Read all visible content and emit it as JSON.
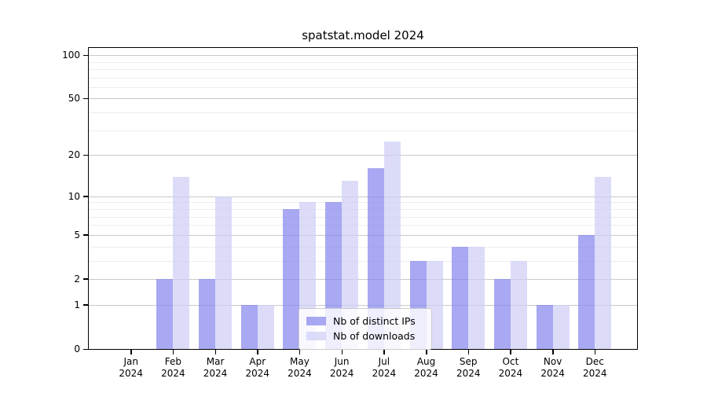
{
  "chart_data": {
    "type": "bar",
    "title": "spatstat.model 2024",
    "categories": [
      "Jan",
      "Feb",
      "Mar",
      "Apr",
      "May",
      "Jun",
      "Jul",
      "Aug",
      "Sep",
      "Oct",
      "Nov",
      "Dec"
    ],
    "x_tick_second_line": "2024",
    "series": [
      {
        "name": "Nb of distinct IPs",
        "color": "rgba(134,134,238,0.72)",
        "values": [
          0,
          2,
          2,
          1,
          8,
          9,
          16,
          3,
          4,
          2,
          1,
          5
        ]
      },
      {
        "name": "Nb of downloads",
        "color": "rgba(206,206,246,0.72)",
        "values": [
          0,
          14,
          10,
          1,
          9,
          13,
          25,
          3,
          4,
          3,
          1,
          14
        ]
      }
    ],
    "yscale": "log1p",
    "ylim": [
      0,
      111
    ],
    "yticks_major": [
      0,
      1,
      2,
      5,
      10,
      20,
      50,
      100
    ],
    "yticks_minor": [
      3,
      4,
      6,
      7,
      8,
      9,
      30,
      40,
      60,
      70,
      80,
      90
    ],
    "grid": true,
    "legend_position": "lower center"
  },
  "colors": {
    "major_grid": "#c9c9c9",
    "minor_grid": "#ededed",
    "spine": "#000000",
    "background": "#ffffff"
  }
}
